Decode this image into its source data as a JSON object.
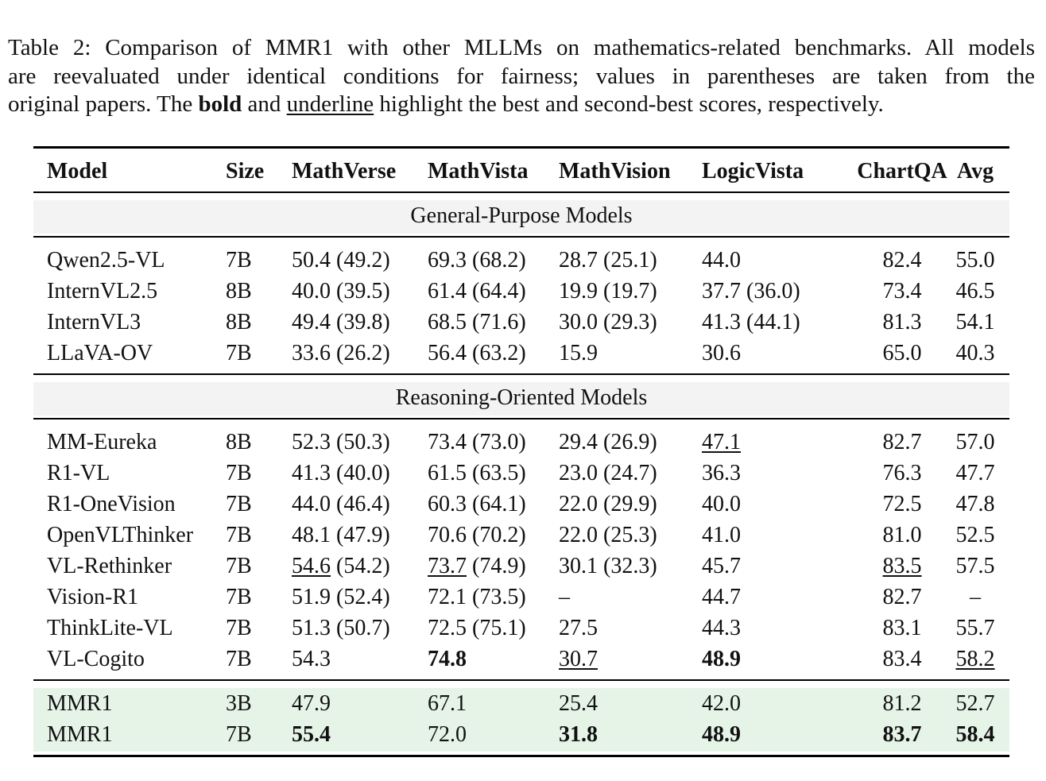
{
  "caption": {
    "l1": "Table 2: Comparison of MMR1 with other MLLMs on mathematics-related benchmarks. All models",
    "l2": "are reevaluated under identical conditions for fairness; values in parentheses are taken from the",
    "l3_pre": "original papers. The ",
    "l3_bold": "bold",
    "l3_mid": " and ",
    "l3_under": "underline",
    "l3_post": " highlight the best and second-best scores, respectively."
  },
  "headers": [
    "Model",
    "Size",
    "MathVerse",
    "MathVista",
    "MathVision",
    "LogicVista",
    "ChartQA",
    "Avg"
  ],
  "sections": {
    "general": "General-Purpose Models",
    "reasoning": "Reasoning-Oriented Models"
  },
  "general_rows": [
    [
      "Qwen2.5-VL",
      "7B",
      "50.4 (49.2)",
      "69.3 (68.2)",
      "28.7 (25.1)",
      "44.0",
      "82.4",
      "55.0"
    ],
    [
      "InternVL2.5",
      "8B",
      "40.0 (39.5)",
      "61.4 (64.4)",
      "19.9 (19.7)",
      "37.7 (36.0)",
      "73.4",
      "46.5"
    ],
    [
      "InternVL3",
      "8B",
      "49.4 (39.8)",
      "68.5 (71.6)",
      "30.0 (29.3)",
      "41.3 (44.1)",
      "81.3",
      "54.1"
    ],
    [
      "LLaVA-OV",
      "7B",
      "33.6 (26.2)",
      "56.4 (63.2)",
      "15.9",
      "30.6",
      "65.0",
      "40.3"
    ]
  ],
  "reasoning_rows": [
    [
      "MM-Eureka",
      "8B",
      "52.3 (50.3)",
      "73.4 (73.0)",
      "29.4 (26.9)",
      "47.1",
      "82.7",
      "57.0"
    ],
    [
      "R1-VL",
      "7B",
      "41.3 (40.0)",
      "61.5 (63.5)",
      "23.0 (24.7)",
      "36.3",
      "76.3",
      "47.7"
    ],
    [
      "R1-OneVision",
      "7B",
      "44.0 (46.4)",
      "60.3 (64.1)",
      "22.0 (29.9)",
      "40.0",
      "72.5",
      "47.8"
    ],
    [
      "OpenVLThinker",
      "7B",
      "48.1 (47.9)",
      "70.6 (70.2)",
      "22.0 (25.3)",
      "41.0",
      "81.0",
      "52.5"
    ],
    [
      "VL-Rethinker",
      "7B",
      "54.6 (54.2)",
      "73.7 (74.9)",
      "30.1 (32.3)",
      "45.7",
      "83.5",
      "57.5"
    ],
    [
      "Vision-R1",
      "7B",
      "51.9 (52.4)",
      "72.1 (73.5)",
      "–",
      "44.7",
      "82.7",
      "–"
    ],
    [
      "ThinkLite-VL",
      "7B",
      "51.3 (50.7)",
      "72.5 (75.1)",
      "27.5",
      "44.3",
      "83.1",
      "55.7"
    ],
    [
      "VL-Cogito",
      "7B",
      "54.3",
      "74.8",
      "30.7",
      "48.9",
      "83.4",
      "58.2"
    ]
  ],
  "mmr1_rows": [
    [
      "MMR1",
      "3B",
      "47.9",
      "67.1",
      "25.4",
      "42.0",
      "81.2",
      "52.7"
    ],
    [
      "MMR1",
      "7B",
      "55.4",
      "72.0",
      "31.8",
      "48.9",
      "83.7",
      "58.4"
    ]
  ],
  "colors": {
    "general_band": "#f3f3f3",
    "mmr1_band": "#e6f4e8"
  }
}
